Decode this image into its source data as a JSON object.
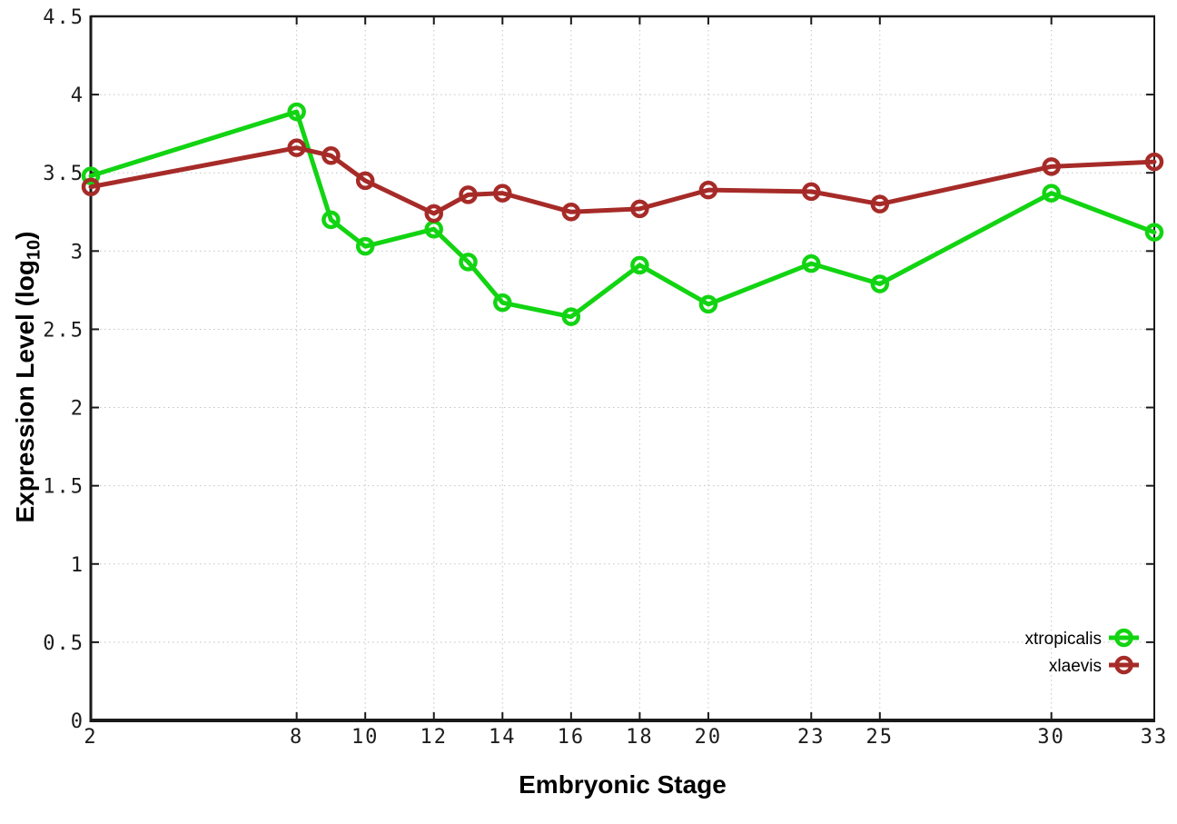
{
  "chart_data": {
    "type": "line",
    "title": "",
    "xlabel": "Embryonic Stage",
    "ylabel": "Expression Level (log10)",
    "ylabel_parts": {
      "pre": "Expression Level (log",
      "sub": "10",
      "post": ")"
    },
    "xlim": [
      2,
      33
    ],
    "ylim": [
      0,
      4.5
    ],
    "grid": true,
    "x_ticks": [
      2,
      8,
      10,
      12,
      14,
      16,
      18,
      20,
      23,
      25,
      30,
      33
    ],
    "x_tick_labels": [
      "2",
      "8",
      "10",
      "12",
      "14",
      "16",
      "18",
      "20",
      "23",
      "25",
      "30",
      "33"
    ],
    "y_ticks": [
      0,
      0.5,
      1,
      1.5,
      2,
      2.5,
      3,
      3.5,
      4,
      4.5
    ],
    "y_tick_labels": [
      "0",
      "0.5",
      "1",
      "1.5",
      "2",
      "2.5",
      "3",
      "3.5",
      "4",
      "4.5"
    ],
    "x": [
      2,
      8,
      9,
      10,
      12,
      13,
      14,
      16,
      18,
      20,
      23,
      25,
      30,
      33
    ],
    "series": [
      {
        "name": "xtropicalis",
        "color": "#12d412",
        "values": [
          3.48,
          3.89,
          3.2,
          3.03,
          3.14,
          2.93,
          2.67,
          2.58,
          2.91,
          2.66,
          2.92,
          2.79,
          3.37,
          3.12
        ]
      },
      {
        "name": "xlaevis",
        "color": "#a62b28",
        "values": [
          3.41,
          3.66,
          3.61,
          3.45,
          3.24,
          3.36,
          3.37,
          3.25,
          3.27,
          3.39,
          3.38,
          3.3,
          3.54,
          3.57
        ]
      }
    ],
    "legend_position": "bottom-right",
    "colors": {
      "grid": "#c4c4c4",
      "frame": "#1a1a1a",
      "tick_text": "#1c1c1c",
      "background": "#ffffff"
    }
  }
}
